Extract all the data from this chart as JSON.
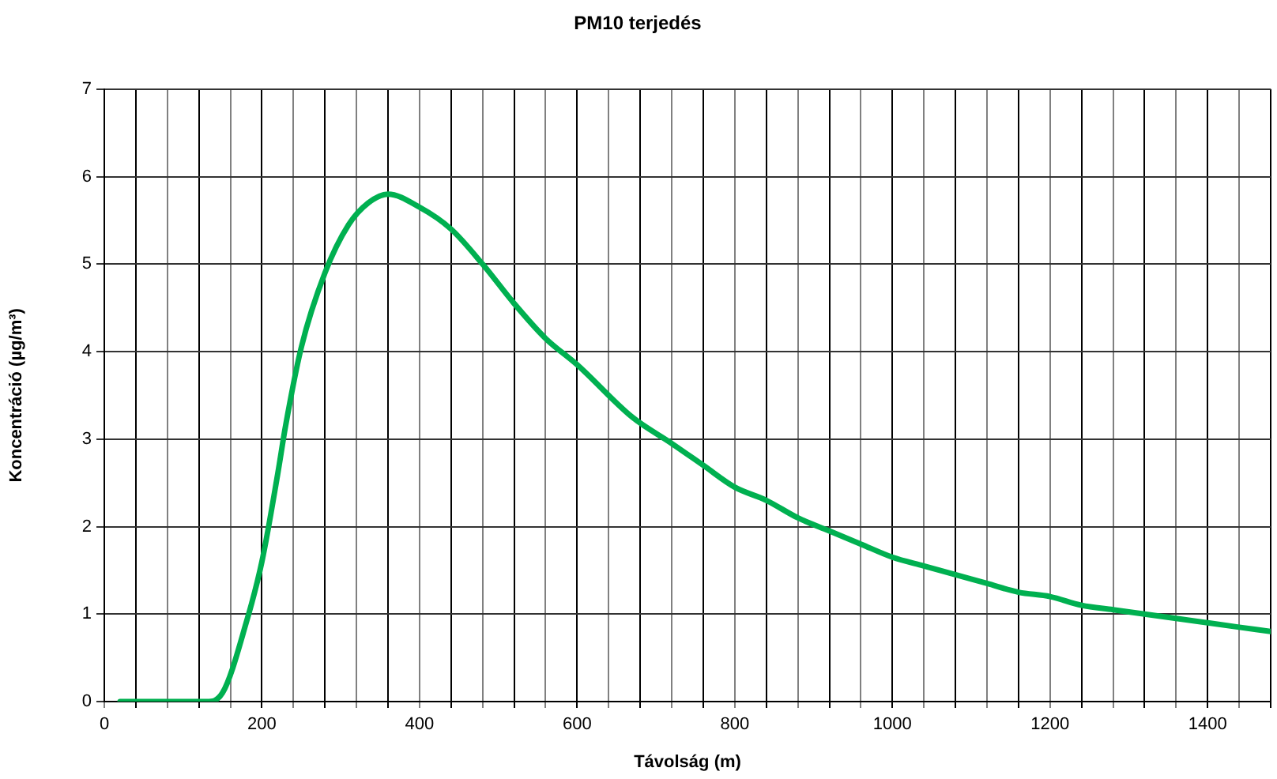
{
  "chart_data": {
    "type": "line",
    "title": "PM10 terjedés",
    "xlabel": "Távolság (m)",
    "ylabel": "Koncentráció (µg/m³)",
    "xlim": [
      0,
      1480
    ],
    "ylim": [
      0,
      7
    ],
    "xticks": [
      0,
      {
        "value": 40,
        "label": null
      },
      {
        "value": 80,
        "label": null
      },
      {
        "value": 120,
        "label": null
      },
      {
        "value": 160,
        "label": null
      },
      200,
      {
        "value": 240,
        "label": null
      },
      {
        "value": 280,
        "label": null
      },
      {
        "value": 320,
        "label": null
      },
      {
        "value": 360,
        "label": null
      },
      400,
      {
        "value": 440,
        "label": null
      },
      {
        "value": 480,
        "label": null
      },
      {
        "value": 520,
        "label": null
      },
      {
        "value": 560,
        "label": null
      },
      600,
      {
        "value": 640,
        "label": null
      },
      {
        "value": 680,
        "label": null
      },
      {
        "value": 720,
        "label": null
      },
      {
        "value": 760,
        "label": null
      },
      800,
      {
        "value": 840,
        "label": null
      },
      {
        "value": 880,
        "label": null
      },
      {
        "value": 920,
        "label": null
      },
      {
        "value": 960,
        "label": null
      },
      1000,
      {
        "value": 1040,
        "label": null
      },
      {
        "value": 1080,
        "label": null
      },
      {
        "value": 1120,
        "label": null
      },
      {
        "value": 1160,
        "label": null
      },
      1200,
      {
        "value": 1240,
        "label": null
      },
      {
        "value": 1280,
        "label": null
      },
      {
        "value": 1320,
        "label": null
      },
      {
        "value": 1360,
        "label": null
      },
      1400,
      {
        "value": 1440,
        "label": null
      },
      {
        "value": 1480,
        "label": null
      }
    ],
    "yticks": [
      0,
      1,
      2,
      3,
      4,
      5,
      6,
      7
    ],
    "grid": true,
    "legend": false,
    "marker": "none",
    "line_style": "solid",
    "x": [
      20,
      130,
      150,
      180,
      200,
      220,
      230,
      250,
      280,
      310,
      335,
      360,
      400,
      440,
      480,
      520,
      560,
      600,
      670,
      720,
      760,
      800,
      840,
      880,
      920,
      960,
      1000,
      1040,
      1080,
      1120,
      1160,
      1200,
      1240,
      1280,
      1320,
      1360,
      1400,
      1440,
      1480
    ],
    "series": [
      {
        "color": "#00b050",
        "values": [
          0,
          0,
          0.1,
          0.9,
          1.6,
          2.6,
          3.15,
          4.05,
          4.9,
          5.45,
          5.7,
          5.8,
          5.65,
          5.4,
          5.0,
          4.55,
          4.15,
          3.85,
          3.25,
          2.95,
          2.7,
          2.45,
          2.3,
          2.1,
          1.95,
          1.8,
          1.65,
          1.55,
          1.45,
          1.35,
          1.25,
          1.2,
          1.1,
          1.05,
          1.0,
          0.95,
          0.9,
          0.85,
          0.8
        ]
      }
    ]
  }
}
